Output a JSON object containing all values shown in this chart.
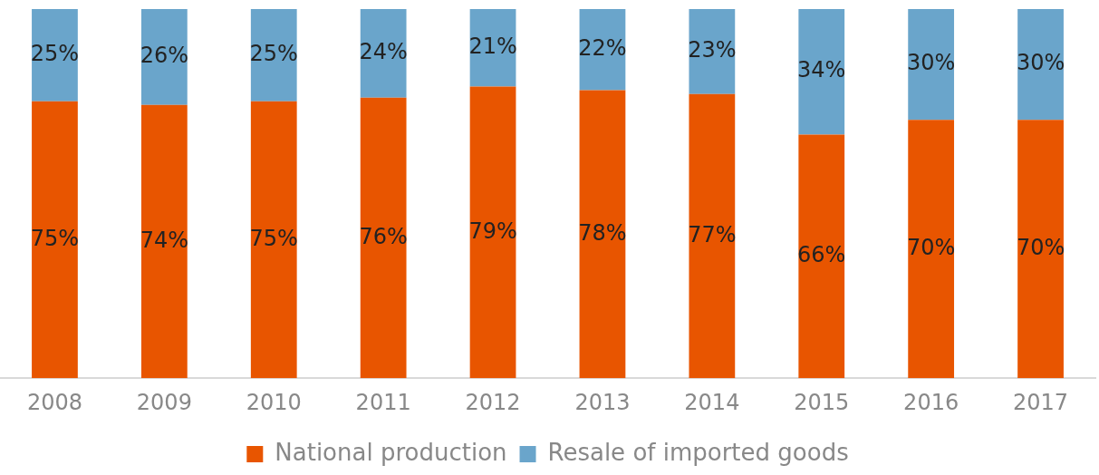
{
  "chart_data": {
    "type": "bar",
    "stacked": true,
    "legend": "bottom",
    "grid": false,
    "ylim": [
      0,
      100
    ],
    "categories": [
      "2008",
      "2009",
      "2010",
      "2011",
      "2012",
      "2013",
      "2014",
      "2015",
      "2016",
      "2017"
    ],
    "series": [
      {
        "name": "National production",
        "color": "#e85500",
        "values": [
          75,
          74,
          75,
          76,
          79,
          78,
          77,
          66,
          70,
          70
        ],
        "value_labels": [
          "75%",
          "74%",
          "75%",
          "76%",
          "79%",
          "78%",
          "77%",
          "66%",
          "70%",
          "70%"
        ]
      },
      {
        "name": "Resale of imported goods",
        "color": "#6aa5cb",
        "values": [
          25,
          26,
          25,
          24,
          21,
          22,
          23,
          34,
          30,
          30
        ],
        "value_labels": [
          "25%",
          "26%",
          "25%",
          "24%",
          "21%",
          "22%",
          "23%",
          "34%",
          "30%",
          "30%"
        ]
      }
    ]
  }
}
